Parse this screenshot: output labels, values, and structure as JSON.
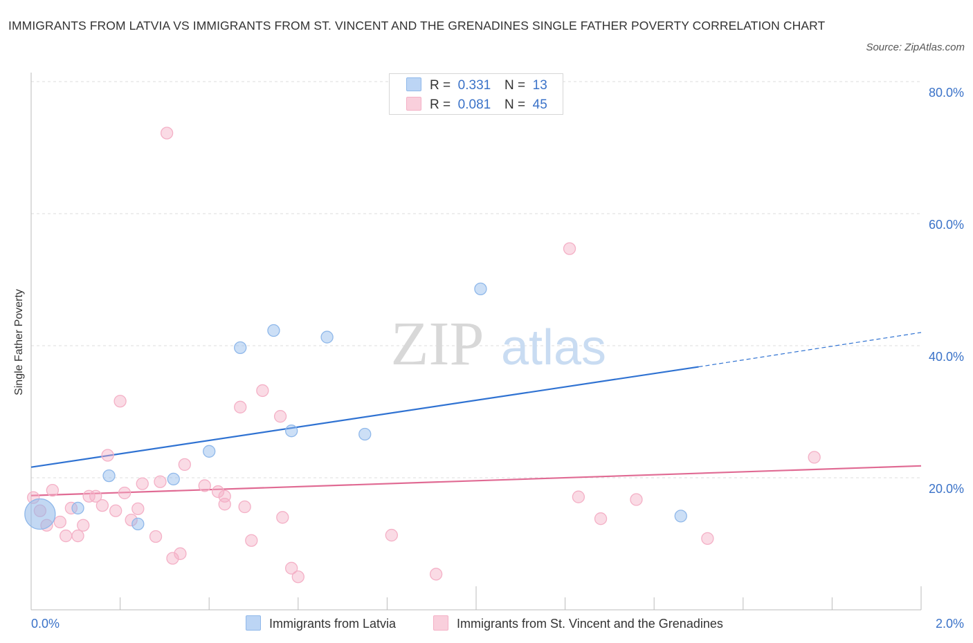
{
  "title": "IMMIGRANTS FROM LATVIA VS IMMIGRANTS FROM ST. VINCENT AND THE GRENADINES SINGLE FATHER POVERTY CORRELATION CHART",
  "source": "Source: ZipAtlas.com",
  "watermark": {
    "zip": "ZIP",
    "atlas": "atlas"
  },
  "chart_data": {
    "type": "scatter",
    "title": "IMMIGRANTS FROM LATVIA VS IMMIGRANTS FROM ST. VINCENT AND THE GRENADINES SINGLE FATHER POVERTY CORRELATION CHART",
    "xlabel": "",
    "ylabel": "Single Father Poverty",
    "xlim": [
      0,
      2.0
    ],
    "ylim": [
      0,
      80
    ],
    "x_tick_labels": [
      {
        "value": 0,
        "label": "0.0%"
      },
      {
        "value": 2.0,
        "label": "2.0%"
      }
    ],
    "y_tick_labels": [
      {
        "value": 20,
        "label": "20.0%"
      },
      {
        "value": 40,
        "label": "40.0%"
      },
      {
        "value": 60,
        "label": "60.0%"
      },
      {
        "value": 80,
        "label": "80.0%"
      }
    ],
    "grid": true,
    "legend_position": "top-center",
    "series": [
      {
        "name": "Immigrants from Latvia",
        "color": "#8fb8ea",
        "line_color": "#2f72d2",
        "R": "0.331",
        "N": "13",
        "trend": {
          "x": [
            0,
            1.5
          ],
          "y": [
            21.6,
            36.8
          ],
          "dashed_to": {
            "x": 2.0,
            "y": 42.0
          }
        },
        "points": [
          {
            "x": 0.02,
            "y": 14.5,
            "big": true
          },
          {
            "x": 0.105,
            "y": 15.4
          },
          {
            "x": 0.175,
            "y": 20.3
          },
          {
            "x": 0.24,
            "y": 13.0
          },
          {
            "x": 0.32,
            "y": 19.8
          },
          {
            "x": 0.4,
            "y": 24.0
          },
          {
            "x": 0.47,
            "y": 39.7
          },
          {
            "x": 0.545,
            "y": 42.3
          },
          {
            "x": 0.585,
            "y": 27.1
          },
          {
            "x": 0.665,
            "y": 41.3
          },
          {
            "x": 0.75,
            "y": 26.6
          },
          {
            "x": 1.01,
            "y": 48.6
          },
          {
            "x": 1.46,
            "y": 14.2
          }
        ]
      },
      {
        "name": "Immigrants from St. Vincent and the Grenadines",
        "color": "#f4b0c6",
        "line_color": "#e06a93",
        "R": "0.081",
        "N": "45",
        "trend": {
          "x": [
            0,
            2.0
          ],
          "y": [
            17.3,
            21.8
          ]
        },
        "points": [
          {
            "x": 0.005,
            "y": 17.0
          },
          {
            "x": 0.02,
            "y": 15.0
          },
          {
            "x": 0.035,
            "y": 12.8
          },
          {
            "x": 0.048,
            "y": 18.1
          },
          {
            "x": 0.065,
            "y": 13.3
          },
          {
            "x": 0.078,
            "y": 11.2
          },
          {
            "x": 0.09,
            "y": 15.4
          },
          {
            "x": 0.105,
            "y": 11.2
          },
          {
            "x": 0.117,
            "y": 12.8
          },
          {
            "x": 0.13,
            "y": 17.2
          },
          {
            "x": 0.145,
            "y": 17.2
          },
          {
            "x": 0.16,
            "y": 15.8
          },
          {
            "x": 0.172,
            "y": 23.4
          },
          {
            "x": 0.19,
            "y": 15.0
          },
          {
            "x": 0.2,
            "y": 31.6
          },
          {
            "x": 0.21,
            "y": 17.7
          },
          {
            "x": 0.225,
            "y": 13.6
          },
          {
            "x": 0.24,
            "y": 15.3
          },
          {
            "x": 0.25,
            "y": 19.1
          },
          {
            "x": 0.28,
            "y": 11.1
          },
          {
            "x": 0.29,
            "y": 19.4
          },
          {
            "x": 0.305,
            "y": 72.2
          },
          {
            "x": 0.318,
            "y": 7.8
          },
          {
            "x": 0.335,
            "y": 8.5
          },
          {
            "x": 0.345,
            "y": 22.0
          },
          {
            "x": 0.39,
            "y": 18.8
          },
          {
            "x": 0.42,
            "y": 17.9
          },
          {
            "x": 0.435,
            "y": 17.2
          },
          {
            "x": 0.435,
            "y": 16.0
          },
          {
            "x": 0.47,
            "y": 30.7
          },
          {
            "x": 0.48,
            "y": 15.6
          },
          {
            "x": 0.495,
            "y": 10.5
          },
          {
            "x": 0.52,
            "y": 33.2
          },
          {
            "x": 0.56,
            "y": 29.3
          },
          {
            "x": 0.565,
            "y": 14.0
          },
          {
            "x": 0.585,
            "y": 6.3
          },
          {
            "x": 0.6,
            "y": 5.0
          },
          {
            "x": 0.81,
            "y": 11.3
          },
          {
            "x": 0.91,
            "y": 5.4
          },
          {
            "x": 1.21,
            "y": 54.7
          },
          {
            "x": 1.23,
            "y": 17.1
          },
          {
            "x": 1.28,
            "y": 13.8
          },
          {
            "x": 1.36,
            "y": 16.7
          },
          {
            "x": 1.52,
            "y": 10.8
          },
          {
            "x": 1.76,
            "y": 23.1
          }
        ]
      }
    ]
  },
  "legend_top": {
    "rows": [
      {
        "r_label": "R =",
        "r_value": "0.331",
        "n_label": "N =",
        "n_value": "13"
      },
      {
        "r_label": "R =",
        "r_value": "0.081",
        "n_label": "N =",
        "n_value": "45"
      }
    ]
  },
  "legend_bottom": {
    "items": [
      {
        "label": "Immigrants from Latvia"
      },
      {
        "label": "Immigrants from St. Vincent and the Grenadines"
      }
    ]
  }
}
